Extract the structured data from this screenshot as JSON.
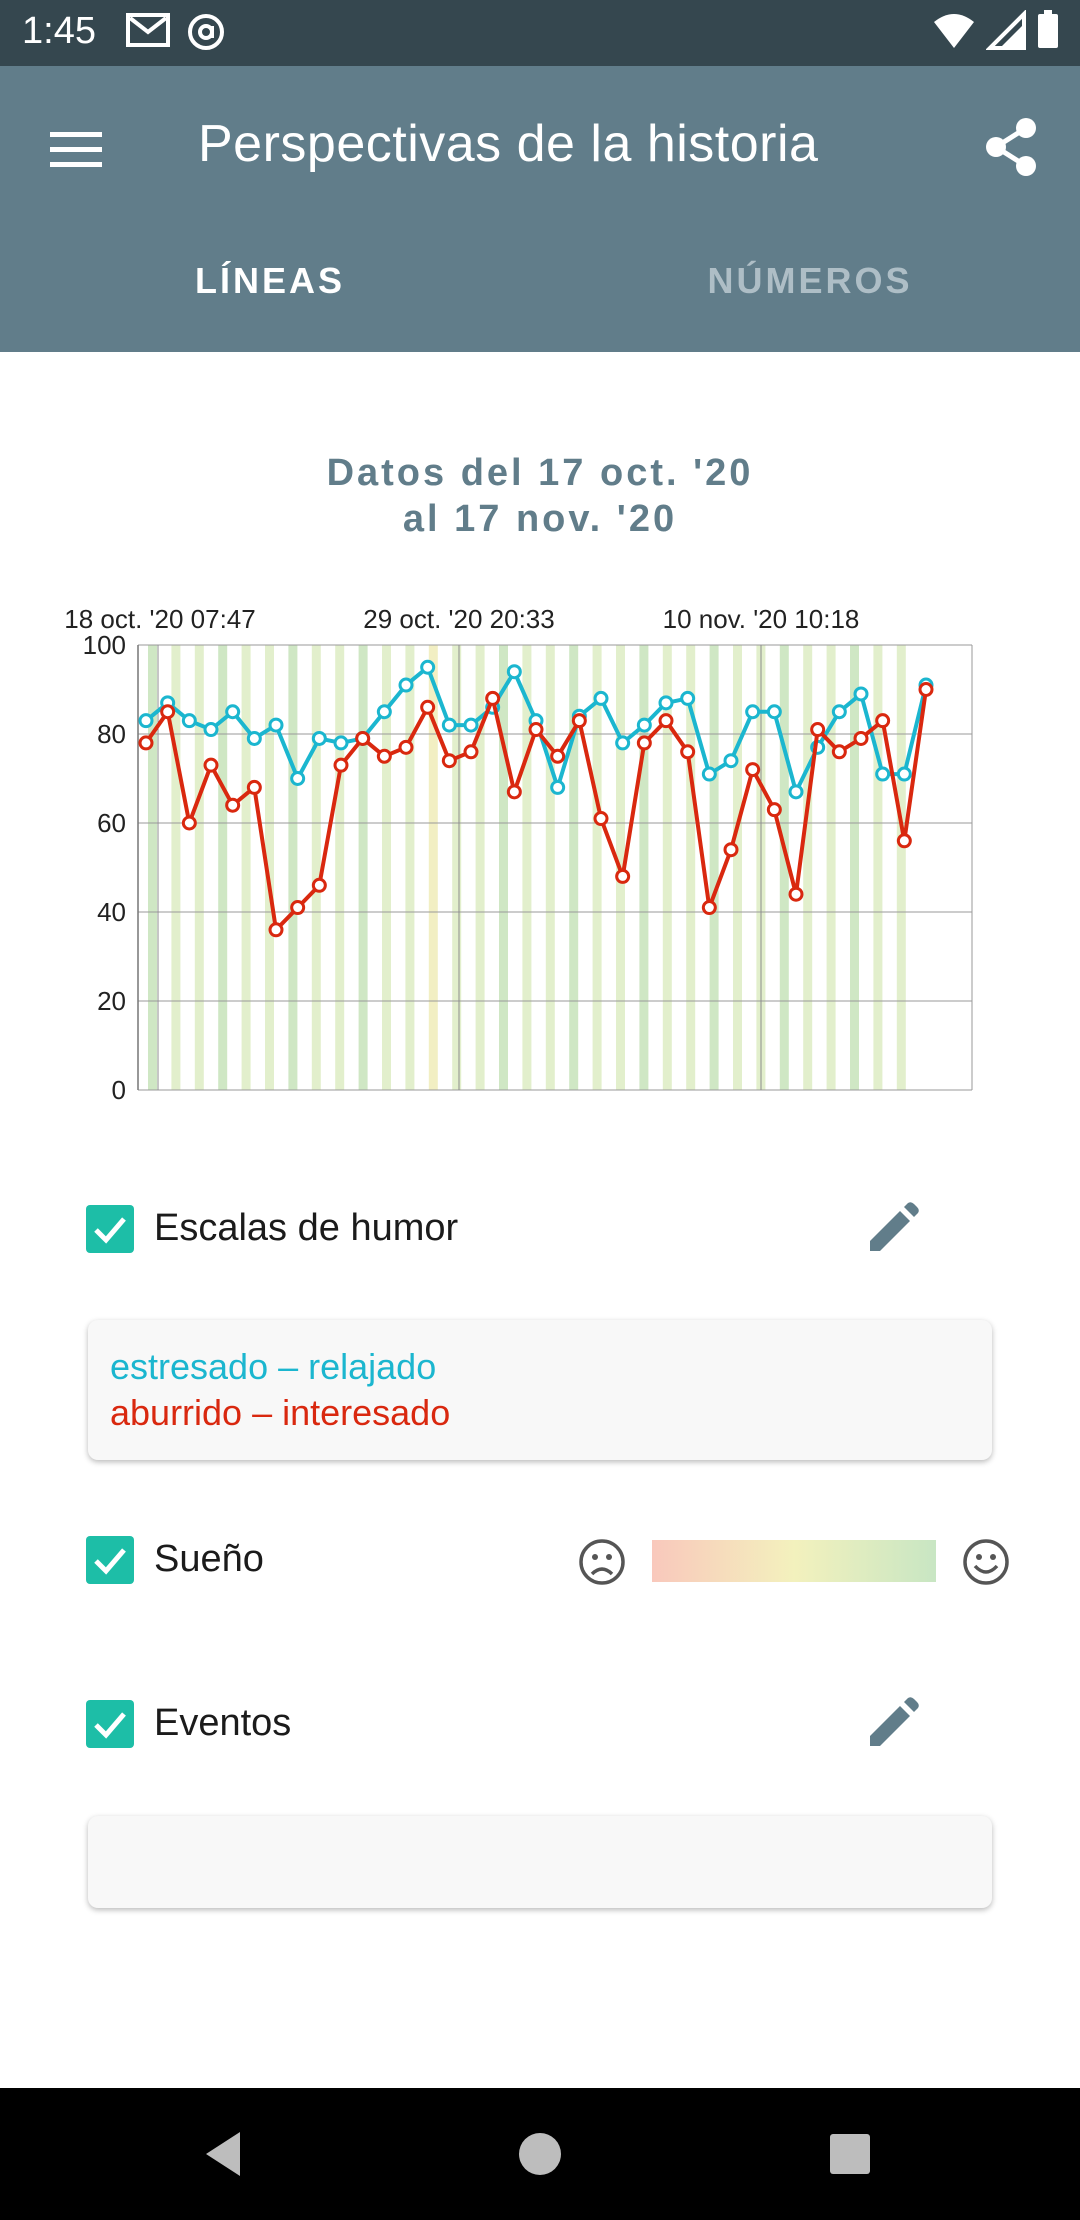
{
  "status": {
    "time": "1:45"
  },
  "app": {
    "title": "Perspectivas de la historia"
  },
  "tabs": [
    {
      "label": "LÍNEAS"
    },
    {
      "label": "NÚMEROS"
    }
  ],
  "range": {
    "line1": "Datos del 17 oct. '20",
    "line2": "al 17 nov. '20"
  },
  "chart_data": {
    "type": "line",
    "top_labels": [
      "18 oct. '20 07:47",
      "29 oct. '20 20:33",
      "10 nov. '20 10:18"
    ],
    "ylim": [
      0,
      100
    ],
    "yticks": [
      "0",
      "20",
      "40",
      "60",
      "80",
      "100"
    ],
    "grid": true,
    "series": [
      {
        "name": "estresado – relajado",
        "color": "#1bb6cf",
        "values": [
          83,
          87,
          83,
          81,
          85,
          79,
          82,
          70,
          79,
          78,
          79,
          85,
          91,
          95,
          82,
          82,
          86,
          94,
          83,
          68,
          84,
          88,
          78,
          82,
          87,
          88,
          71,
          74,
          85,
          85,
          67,
          77,
          85,
          89,
          71,
          71,
          91
        ]
      },
      {
        "name": "aburrido – interesado",
        "color": "#d9280f",
        "values": [
          78,
          85,
          60,
          73,
          64,
          68,
          36,
          41,
          46,
          73,
          79,
          75,
          77,
          86,
          74,
          76,
          88,
          67,
          81,
          75,
          83,
          61,
          48,
          78,
          83,
          76,
          41,
          54,
          72,
          63,
          44,
          81,
          76,
          79,
          83,
          56,
          90
        ]
      }
    ]
  },
  "mood": {
    "label": "Escalas de humor",
    "line1": "estresado – relajado",
    "line2": "aburrido – interesado",
    "color1": "#1bb6cf",
    "color2": "#d9280f"
  },
  "sleep": {
    "label": "Sueño"
  },
  "events": {
    "label": "Eventos"
  }
}
